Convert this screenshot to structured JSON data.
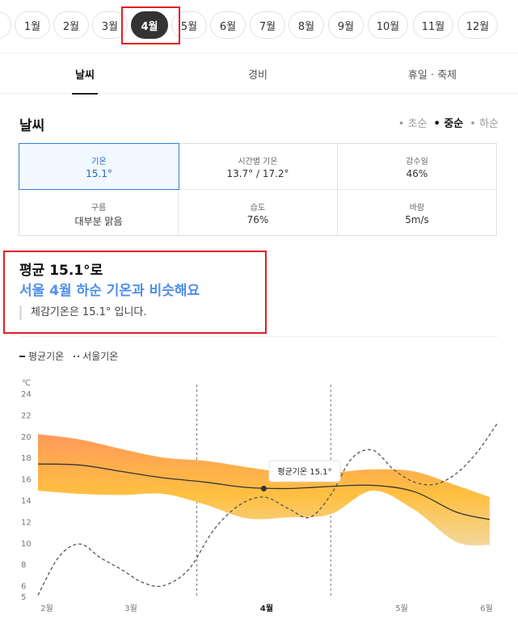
{
  "months": [
    "1월",
    "2월",
    "3월",
    "4월",
    "5월",
    "6월",
    "7월",
    "8월",
    "9월",
    "10월",
    "11월",
    "12월"
  ],
  "selected_month": "4월",
  "tabs": [
    "날씨",
    "경비",
    "휴일 · 축제"
  ],
  "section_title": "날씨",
  "periods": [
    "초순",
    "중순",
    "하순"
  ],
  "selected_period": "중순",
  "stats": {
    "temp": {
      "label": "기온",
      "value": "15.1°"
    },
    "hourly": {
      "label": "시간별 기온",
      "value": "13.7° / 17.2°"
    },
    "rain": {
      "label": "강수일",
      "value": "46%"
    },
    "cloud": {
      "label": "구름",
      "value": "대부분 맑음"
    },
    "humidity": {
      "label": "습도",
      "value": "76%"
    },
    "wind": {
      "label": "바람",
      "value": "5m/s"
    }
  },
  "summary": {
    "line1": "평균 15.1°로",
    "line2": "서울 4월 하순 기온과 비슷해요",
    "line3": "체감기온은 15.1° 입니다."
  },
  "legend": {
    "avg": "평균기온",
    "seoul": "서울기온"
  },
  "chart_data": {
    "type": "line",
    "ylabel": "℃",
    "y_ticks": [
      5,
      6,
      8,
      10,
      12,
      14,
      16,
      18,
      20,
      22,
      24
    ],
    "ylim": [
      5,
      24
    ],
    "x_ticks": [
      "2월",
      "3월",
      "4월",
      "5월",
      "6월"
    ],
    "highlight_x": "4월",
    "tooltip": "평균기온 15.1°",
    "colors": {
      "band_top": "#ff9a5a",
      "band_mid": "#ffc041",
      "band_bottom": "#f2d79a",
      "avg_line": "#333333",
      "seoul_line": "#555555"
    },
    "series": [
      {
        "name": "평균기온",
        "x": [
          0,
          0.5,
          1,
          1.5,
          2,
          2.5,
          3,
          3.5,
          4,
          4.5,
          5,
          5.4
        ],
        "values": [
          17.4,
          17.3,
          16.7,
          16.1,
          15.7,
          15.2,
          15.1,
          15.3,
          15.4,
          14.8,
          12.9,
          12.2
        ]
      },
      {
        "name": "평균기온 상한",
        "x": [
          0,
          0.5,
          1,
          1.5,
          2,
          2.5,
          3,
          3.5,
          4,
          4.5,
          5,
          5.4
        ],
        "values": [
          20.2,
          19.7,
          18.8,
          18.0,
          17.7,
          17.1,
          16.6,
          16.6,
          16.9,
          16.7,
          15.4,
          14.3
        ]
      },
      {
        "name": "평균기온 하한",
        "x": [
          0,
          0.5,
          1,
          1.5,
          2,
          2.5,
          3,
          3.5,
          4,
          4.5,
          5,
          5.4
        ],
        "values": [
          14.9,
          14.6,
          14.5,
          14.6,
          13.6,
          12.3,
          12.4,
          12.7,
          14.9,
          13.1,
          10.1,
          9.8
        ]
      },
      {
        "name": "서울기온",
        "x": [
          0,
          0.25,
          0.5,
          0.75,
          1,
          1.25,
          1.5,
          1.8,
          2.1,
          2.4,
          2.7,
          3,
          3.25,
          3.5,
          3.75,
          4,
          4.25,
          4.5,
          4.75,
          5,
          5.25,
          5.5
        ],
        "values": [
          5.1,
          8.7,
          9.9,
          8.6,
          7.5,
          6.3,
          6.0,
          7.5,
          11.2,
          13.5,
          14.3,
          13.2,
          12.4,
          14.5,
          17.9,
          18.7,
          16.9,
          15.7,
          15.5,
          16.5,
          18.5,
          21.3
        ]
      }
    ]
  }
}
